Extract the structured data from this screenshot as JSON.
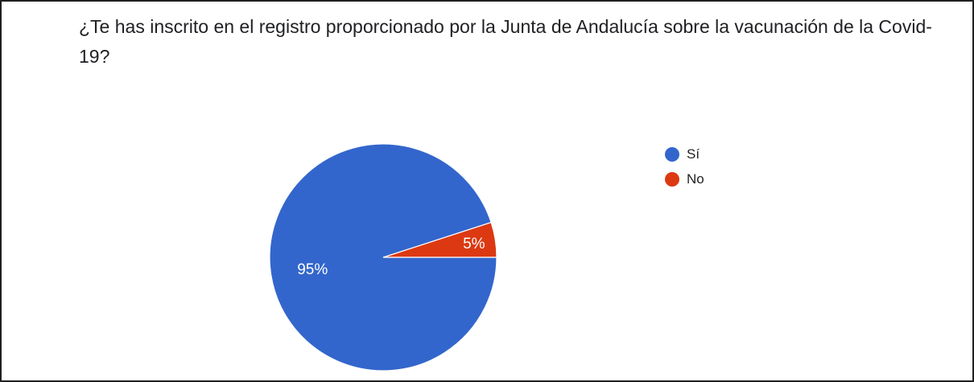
{
  "question": "¿Te has inscrito en el registro proporcionado por la Junta de Andalucía sobre la vacunación de la Covid-19?",
  "chart_data": {
    "type": "pie",
    "title": "",
    "slices": [
      {
        "label": "Sí",
        "value": 95,
        "display": "95%",
        "color": "#3366cc"
      },
      {
        "label": "No",
        "value": 5,
        "display": "5%",
        "color": "#dc3912"
      }
    ],
    "start": "3 o'clock",
    "direction": "counterclockwise",
    "legend_position": "right"
  }
}
